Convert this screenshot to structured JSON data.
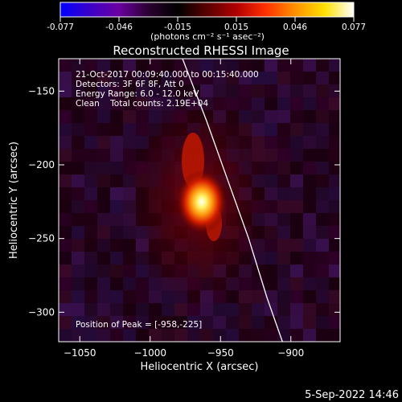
{
  "colorbar": {
    "ticks": [
      "-0.077",
      "-0.046",
      "-0.015",
      "0.015",
      "0.046",
      "0.077"
    ],
    "unit_label": "(photons cm⁻² s⁻¹ asec⁻²)",
    "range": [
      -0.077,
      0.077
    ],
    "colormap": [
      "#0000ff",
      "#3b00c8",
      "#6a00a0",
      "#2a0030",
      "#000000",
      "#5a0000",
      "#b00000",
      "#ff3000",
      "#ff9000",
      "#ffe000",
      "#ffffff"
    ]
  },
  "header": {
    "timestamp": "5-Sep-2022 14:46"
  },
  "chart_data": {
    "type": "heatmap",
    "title": "Reconstructed RHESSI Image",
    "xlabel": "Heliocentric X (arcsec)",
    "ylabel": "Heliocentric Y (arcsec)",
    "xlim": [
      -1065,
      -865
    ],
    "ylim": [
      -320,
      -128
    ],
    "x_ticks": [
      -1050,
      -1000,
      -950,
      -900
    ],
    "y_ticks": [
      -150,
      -200,
      -250,
      -300
    ],
    "x_tick_labels": [
      "−1050",
      "−1000",
      "−950",
      "−900"
    ],
    "y_tick_labels": [
      "−150",
      "−200",
      "−250",
      "−300"
    ],
    "info_lines": [
      "21-Oct-2017 00:09:40.000 to 00:15:40.000",
      "Detectors: 3F 6F 8F, Att 0",
      "Energy Range: 6.0 - 12.0 keV",
      "Clean    Total counts: 2.19E+04"
    ],
    "peak_label": "Position of Peak = [-958,-225]",
    "peak": {
      "x": -958,
      "y": -225
    },
    "limb_curve": {
      "x": [
        -977,
        -960,
        -945,
        -930,
        -917,
        -906
      ],
      "y": [
        -128,
        -170,
        -210,
        -250,
        -290,
        -320
      ]
    }
  }
}
